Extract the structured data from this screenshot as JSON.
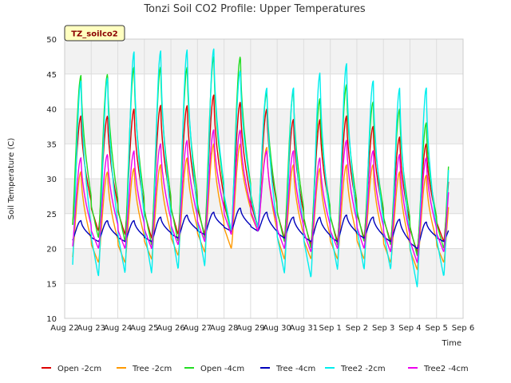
{
  "chart_data": {
    "type": "line",
    "title": "Tonzi Soil CO2 Profile: Upper Temperatures",
    "xlabel": "Time",
    "ylabel": "Soil Temperature (C)",
    "tag": "TZ_soilco2",
    "ylim": [
      10,
      50
    ],
    "yticks": [
      10,
      15,
      20,
      25,
      30,
      35,
      40,
      45,
      50
    ],
    "xlim": [
      0,
      15
    ],
    "xtick_labels": [
      "Aug 22",
      "Aug 23",
      "Aug 24",
      "Aug 25",
      "Aug 26",
      "Aug 27",
      "Aug 28",
      "Aug 29",
      "Aug 30",
      "Aug 31",
      "Sep 1",
      "Sep 2",
      "Sep 3",
      "Sep 4",
      "Sep 5",
      "Sep 6"
    ],
    "grid": true,
    "legend_position": "bottom",
    "days": [
      0,
      1,
      2,
      3,
      4,
      5,
      6,
      7,
      8,
      9,
      10,
      11,
      12,
      13,
      14
    ],
    "series": [
      {
        "name": "Open -2cm",
        "color": "#dd0000",
        "daily_min": [
          22.5,
          22.5,
          22.0,
          21.5,
          22.0,
          22.0,
          22.5,
          23.0,
          21.5,
          20.5,
          21.0,
          21.5,
          21.0,
          19.5,
          21.0
        ],
        "daily_max": [
          39.0,
          39.0,
          40.0,
          40.5,
          40.5,
          42.0,
          41.0,
          40.0,
          38.5,
          38.5,
          39.0,
          37.5,
          36.0,
          35.0,
          34.5
        ]
      },
      {
        "name": "Tree -2cm",
        "color": "#ff9900",
        "daily_min": [
          18.0,
          18.0,
          18.0,
          18.5,
          19.0,
          19.5,
          20.0,
          22.5,
          18.5,
          18.5,
          18.5,
          18.5,
          18.0,
          17.0,
          18.0
        ],
        "daily_max": [
          31.0,
          31.0,
          31.5,
          32.0,
          33.0,
          35.0,
          35.0,
          34.5,
          32.0,
          31.5,
          32.0,
          32.0,
          31.0,
          30.5,
          30.5
        ]
      },
      {
        "name": "Open -4cm",
        "color": "#22dd22",
        "daily_min": [
          22.0,
          21.5,
          21.0,
          20.5,
          21.0,
          21.5,
          22.0,
          23.0,
          21.0,
          20.0,
          20.5,
          21.0,
          20.5,
          19.0,
          20.0
        ],
        "daily_max": [
          44.8,
          45.0,
          46.0,
          46.0,
          46.0,
          47.5,
          47.5,
          42.5,
          42.5,
          41.5,
          43.5,
          41.0,
          40.0,
          38.0,
          38.5
        ]
      },
      {
        "name": "Tree -4cm",
        "color": "#0000bb",
        "daily_min": [
          21.0,
          21.0,
          21.0,
          21.0,
          21.5,
          22.0,
          22.5,
          22.5,
          21.5,
          21.0,
          21.0,
          21.5,
          21.0,
          20.0,
          21.0
        ],
        "daily_max": [
          24.0,
          24.0,
          24.0,
          24.5,
          24.8,
          25.2,
          25.8,
          25.2,
          24.5,
          24.5,
          24.8,
          24.5,
          24.2,
          23.8,
          23.5
        ]
      },
      {
        "name": "Tree2 -2cm",
        "color": "#00eeee",
        "daily_min": [
          16.0,
          16.0,
          16.5,
          16.5,
          17.0,
          17.5,
          22.5,
          23.0,
          16.5,
          15.8,
          17.0,
          17.0,
          17.0,
          14.5,
          16.0
        ],
        "daily_max": [
          44.0,
          44.5,
          48.2,
          48.3,
          48.5,
          48.6,
          45.5,
          43.0,
          43.0,
          45.2,
          46.5,
          44.0,
          43.0,
          43.0,
          40.0
        ]
      },
      {
        "name": "Tree2 -4cm",
        "color": "#ee00ee",
        "daily_min": [
          19.5,
          20.0,
          20.0,
          20.0,
          20.5,
          21.0,
          22.0,
          22.5,
          20.0,
          19.5,
          20.0,
          20.0,
          19.5,
          18.0,
          19.5
        ],
        "daily_max": [
          33.0,
          33.5,
          34.0,
          35.0,
          35.5,
          37.0,
          37.0,
          34.0,
          34.0,
          33.0,
          35.5,
          34.0,
          33.5,
          33.0,
          33.0
        ]
      }
    ]
  }
}
